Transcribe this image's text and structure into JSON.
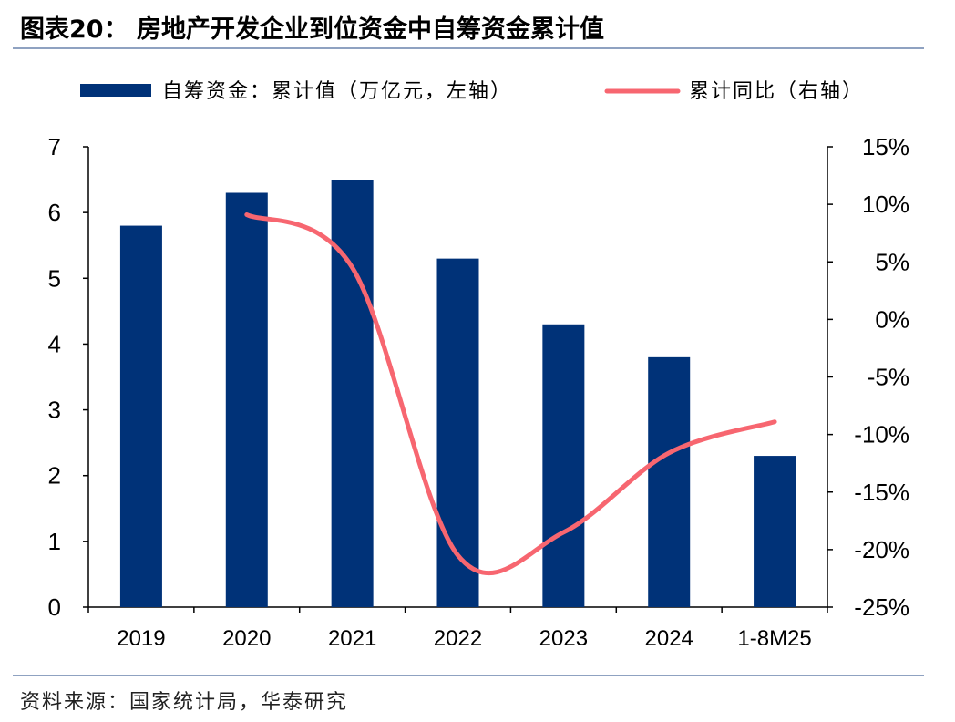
{
  "header": {
    "title": "图表20：  房地产开发企业到位资金中自筹资金累计值"
  },
  "footer": {
    "source": "资料来源：国家统计局，华泰研究"
  },
  "colors": {
    "bar": "#003278",
    "line": "#f76670",
    "rule": "#8fa2c1"
  },
  "chart_data": {
    "type": "bar",
    "categories": [
      "2019",
      "2020",
      "2021",
      "2022",
      "2023",
      "2024",
      "1-8M25"
    ],
    "series": [
      {
        "name": "自筹资金：累计值（万亿元，左轴）",
        "type": "bar",
        "axis": "left",
        "values": [
          5.8,
          6.3,
          6.5,
          5.3,
          4.3,
          3.8,
          2.3
        ]
      },
      {
        "name": "累计同比（右轴）",
        "type": "line",
        "axis": "right",
        "values": [
          null,
          9.1,
          4.5,
          -20.5,
          -18.5,
          -11.6,
          -8.9
        ]
      }
    ],
    "y_left": {
      "min": 0,
      "max": 7,
      "ticks": [
        "0",
        "1",
        "2",
        "3",
        "4",
        "5",
        "6",
        "7"
      ]
    },
    "y_right": {
      "min": -25,
      "max": 15,
      "ticks": [
        "15%",
        "10%",
        "5%",
        "0%",
        "-5%",
        "-10%",
        "-15%",
        "-20%",
        "-25%"
      ]
    },
    "legend_position": "top",
    "grid": false
  }
}
